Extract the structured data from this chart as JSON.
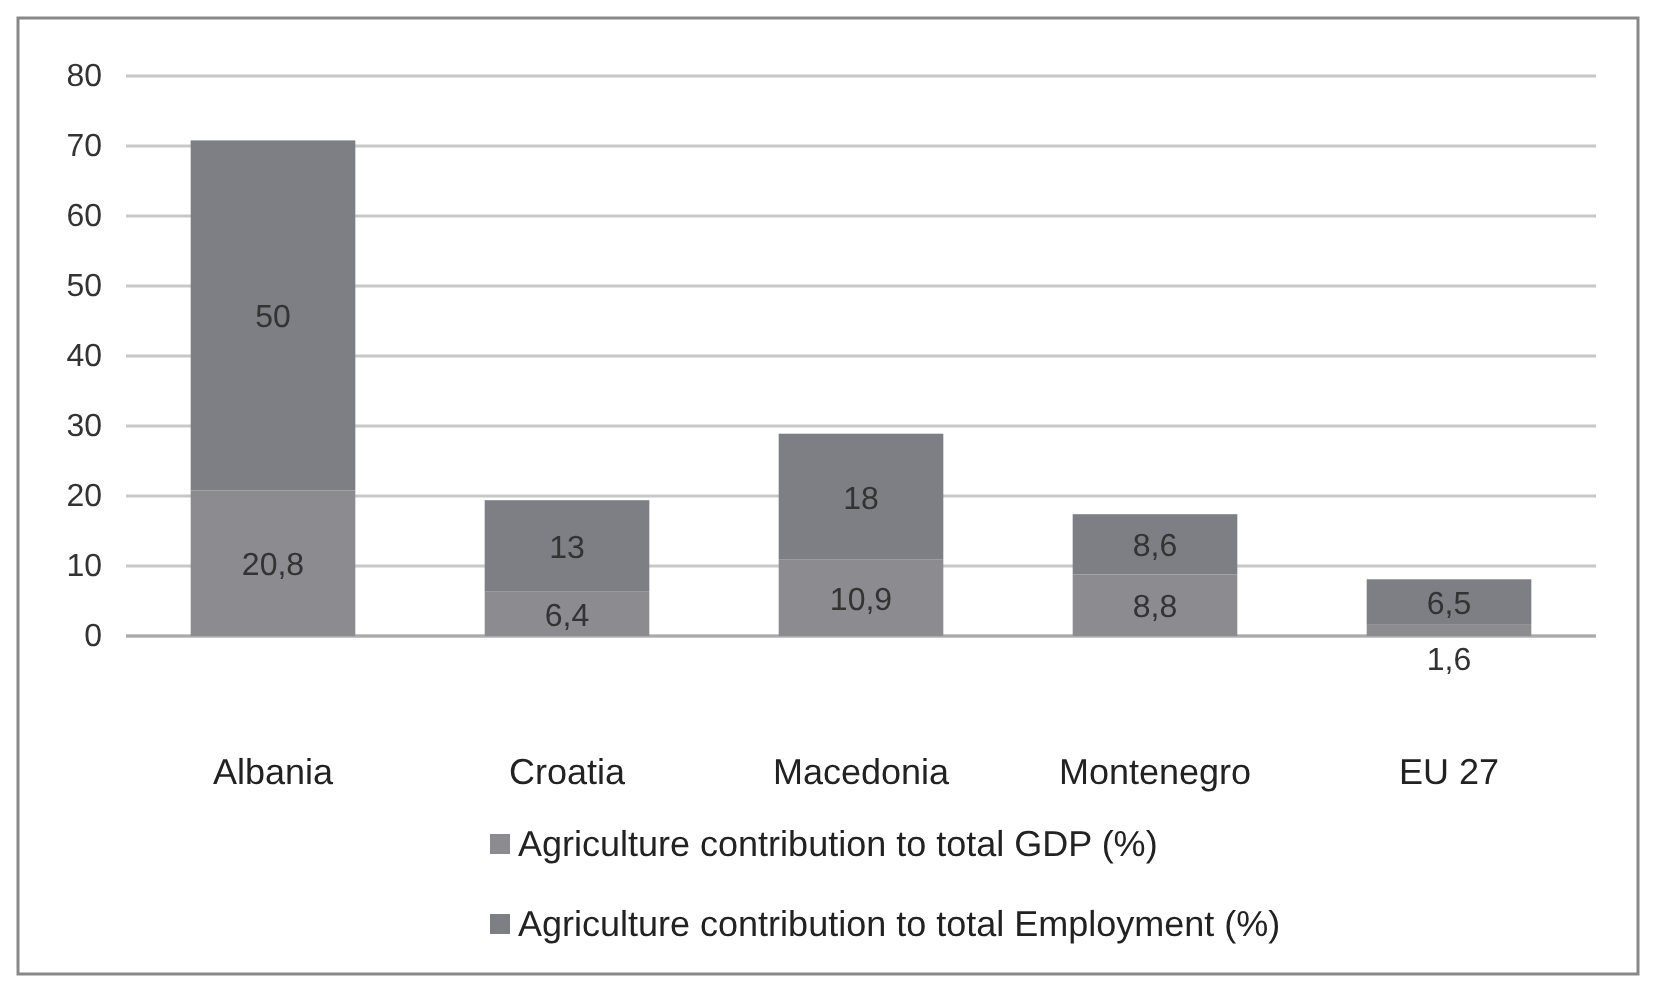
{
  "chart_data": {
    "type": "bar",
    "stacked": true,
    "categories": [
      "Albania",
      "Croatia",
      "Macedonia",
      "Montenegro",
      "EU 27"
    ],
    "series": [
      {
        "name": "Agriculture contribution to total GDP (%)",
        "color": "#8b8b90",
        "values": [
          20.8,
          6.4,
          10.9,
          8.8,
          1.6
        ],
        "value_labels": [
          "20,8",
          "6,4",
          "10,9",
          "8,8",
          "1,6"
        ]
      },
      {
        "name": "Agriculture contribution to total Employment (%)",
        "color": "#7e7f84",
        "values": [
          50,
          13,
          18,
          8.6,
          6.5
        ],
        "value_labels": [
          "50",
          "13",
          "18",
          "8,6",
          "6,5"
        ]
      }
    ],
    "ylim": [
      0,
      80
    ],
    "yticks": [
      0,
      10,
      20,
      30,
      40,
      50,
      60,
      70,
      80
    ],
    "grid": "y",
    "legend": "bottom"
  }
}
